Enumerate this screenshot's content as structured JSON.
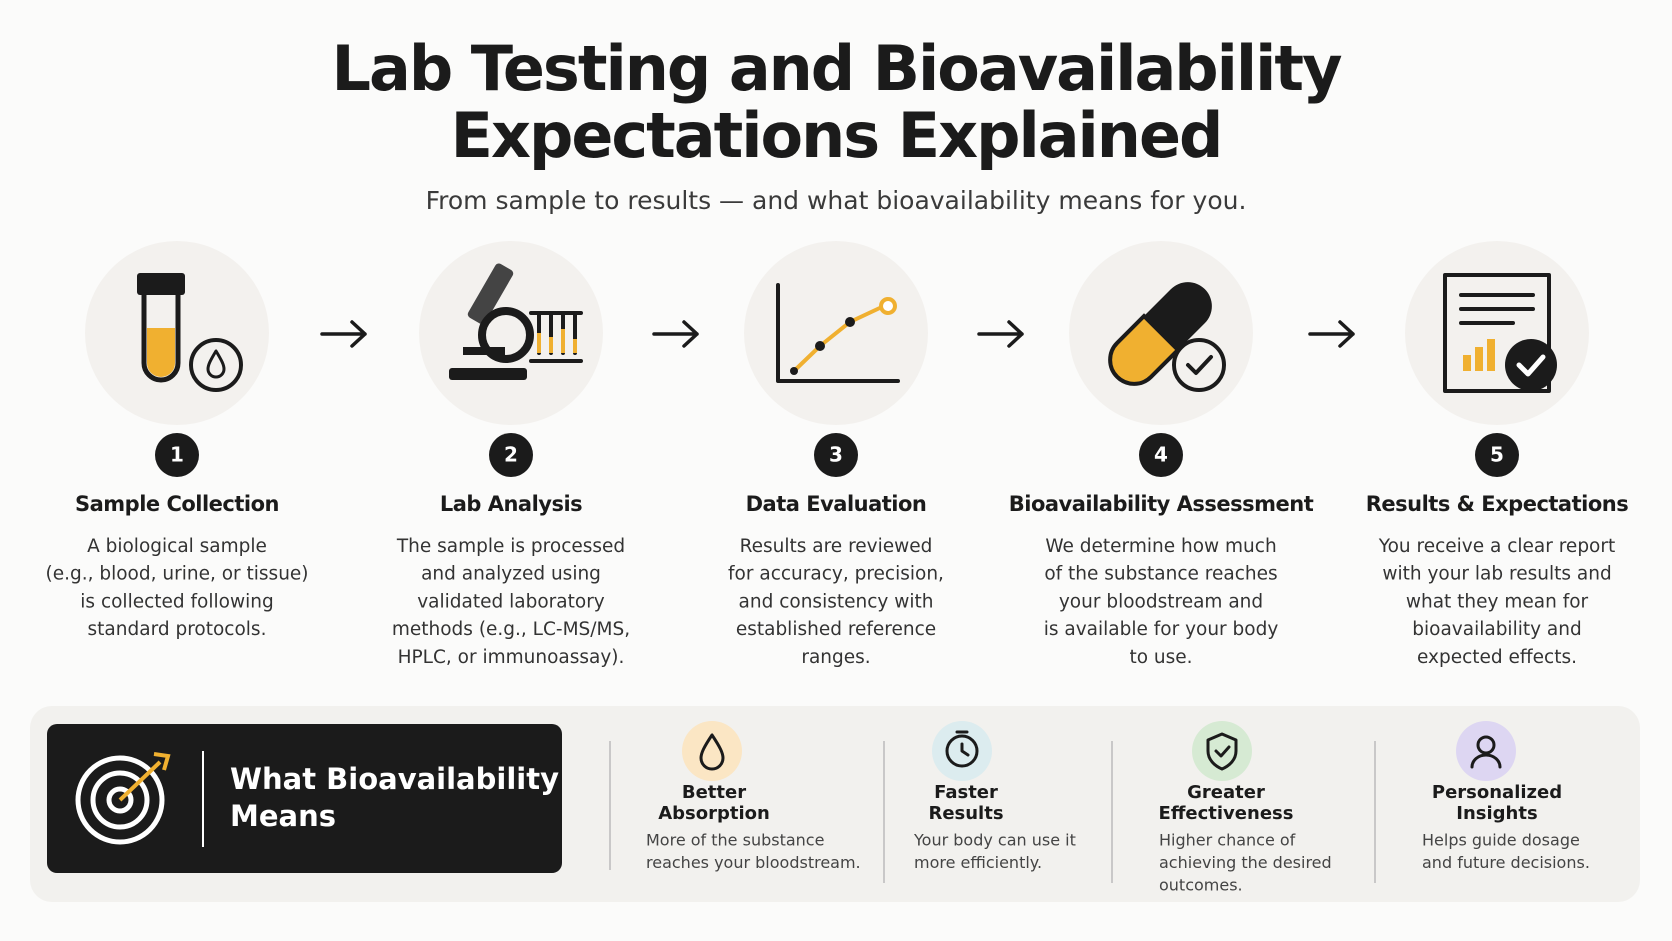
{
  "header": {
    "title_lines": [
      "Lab Testing and Bioavailability",
      "Expectations Explained"
    ],
    "subtitle": "From sample to results — and what bioavailability means for you."
  },
  "steps": [
    {
      "number": 1,
      "title": "Sample Collection",
      "description_lines": [
        "A biological sample",
        "(e.g., blood, urine, or tissue)",
        "is collected following",
        "standard protocols."
      ]
    },
    {
      "number": 2,
      "title": "Lab Analysis",
      "description_lines": [
        "The sample is processed",
        "and analyzed using",
        "validated laboratory",
        "methods (e.g., LC-MS/MS,",
        "HPLC, or immunoassay)."
      ]
    },
    {
      "number": 3,
      "title": "Data Evaluation",
      "description_lines": [
        "Results are reviewed",
        "for accuracy, precision,",
        "and consistency with",
        "established reference",
        "ranges."
      ]
    },
    {
      "number": 4,
      "title": "Bioavailability Assessment",
      "description_lines": [
        "We determine how much",
        "of the substance reaches",
        "your bloodstream and",
        "is available for your body",
        "to use."
      ]
    },
    {
      "number": 5,
      "title": "Results & Expectations",
      "description_lines": [
        "You receive a clear report",
        "with your lab results and",
        "what they mean for",
        "bioavailability and",
        "expected effects."
      ]
    }
  ],
  "panel": {
    "title_lines": [
      "What Bioavailability",
      "Means"
    ],
    "benefits": [
      {
        "title_lines": [
          "Better",
          "Absorption"
        ],
        "description_lines": [
          "More of the substance",
          "reaches your bloodstream."
        ]
      },
      {
        "title_lines": [
          "Faster",
          "Results"
        ],
        "description_lines": [
          "Your body can use it",
          "more efficiently."
        ]
      },
      {
        "title_lines": [
          "Greater",
          "Effectiveness"
        ],
        "description_lines": [
          "Higher chance of",
          "achieving the desired",
          "outcomes."
        ]
      },
      {
        "title_lines": [
          "Personalized",
          "Insights"
        ],
        "description_lines": [
          "Helps guide dosage",
          "and future decisions."
        ]
      }
    ]
  }
}
